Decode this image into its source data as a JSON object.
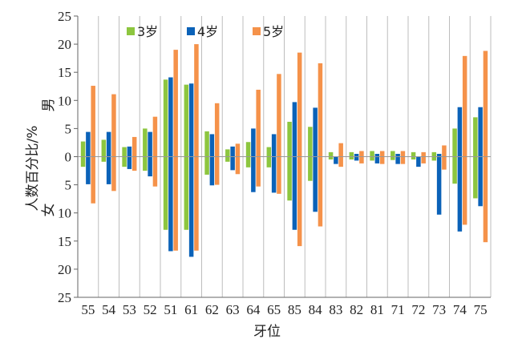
{
  "chart_data": {
    "type": "bar",
    "xlabel": "牙位",
    "ylabel": "人数百分比/%",
    "ylabel_top": "男",
    "ylabel_bottom": "女",
    "ylim": [
      -25,
      25
    ],
    "yticks": [
      "25",
      "20",
      "15",
      "10",
      "5",
      "0",
      "5",
      "10",
      "15",
      "20",
      "25"
    ],
    "categories": [
      "55",
      "54",
      "53",
      "52",
      "51",
      "61",
      "62",
      "63",
      "64",
      "65",
      "85",
      "84",
      "83",
      "82",
      "81",
      "71",
      "72",
      "73",
      "74",
      "75"
    ],
    "legend_position": "top-left",
    "series": [
      {
        "name": "3岁",
        "color": "#8dc63f",
        "male": [
          2.7,
          3.0,
          1.7,
          5.0,
          13.7,
          12.8,
          4.5,
          1.3,
          2.6,
          1.7,
          6.2,
          5.3,
          0.8,
          0.8,
          1.0,
          1.0,
          0.8,
          0.8,
          5.0,
          7.0
        ],
        "female": [
          1.8,
          0.9,
          1.8,
          2.5,
          13.0,
          13.0,
          3.2,
          0.9,
          1.9,
          1.9,
          7.8,
          4.3,
          0.5,
          0.5,
          0.7,
          0.6,
          0.5,
          0.7,
          4.8,
          7.4
        ]
      },
      {
        "name": "4岁",
        "color": "#0b62b8",
        "male": [
          4.4,
          4.4,
          1.8,
          4.4,
          14.1,
          13.0,
          4.0,
          1.8,
          5.0,
          4.0,
          9.7,
          8.7,
          0.0,
          0.5,
          0.5,
          0.5,
          0.0,
          0.5,
          8.8,
          8.8
        ],
        "female": [
          4.9,
          4.9,
          2.2,
          3.5,
          16.8,
          17.8,
          5.1,
          2.4,
          6.3,
          6.4,
          13.0,
          9.8,
          1.3,
          0.7,
          1.2,
          1.3,
          1.8,
          10.3,
          13.3,
          8.8
        ]
      },
      {
        "name": "5岁",
        "color": "#f5924a",
        "male": [
          12.6,
          11.1,
          3.5,
          7.1,
          19.0,
          20.0,
          9.5,
          2.3,
          11.9,
          14.7,
          18.5,
          16.6,
          2.4,
          1.0,
          1.0,
          1.0,
          0.8,
          2.0,
          17.9,
          18.8
        ],
        "female": [
          8.3,
          6.1,
          2.5,
          5.3,
          16.7,
          16.7,
          5.0,
          3.1,
          5.3,
          6.6,
          15.9,
          12.4,
          1.8,
          1.2,
          1.3,
          1.3,
          1.2,
          2.3,
          12.1,
          15.2
        ]
      }
    ]
  }
}
